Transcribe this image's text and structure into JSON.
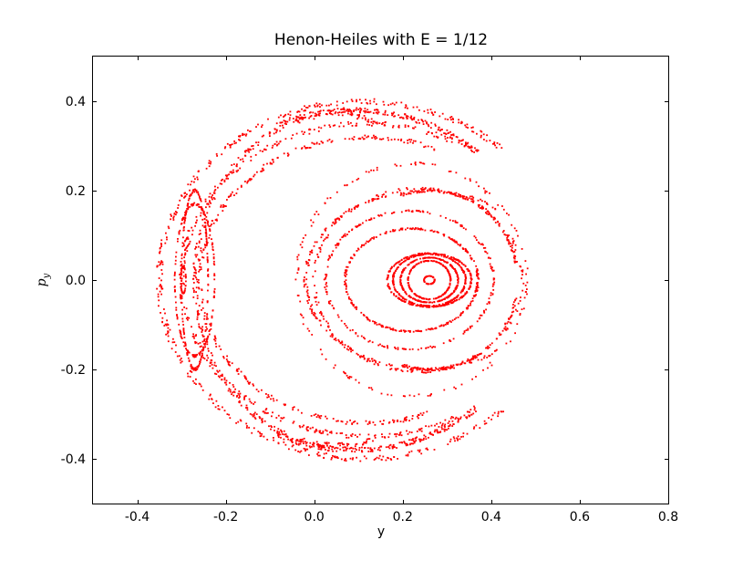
{
  "chart_data": {
    "type": "scatter",
    "title": "Henon-Heiles with E = 1/12",
    "xlabel": "y",
    "ylabel": "p",
    "ylabel_subscript": "y",
    "xlim": [
      -0.5,
      0.8
    ],
    "ylim": [
      -0.5,
      0.5
    ],
    "xticks": [
      -0.4,
      -0.2,
      0.0,
      0.2,
      0.4,
      0.6,
      0.8
    ],
    "xtick_labels": [
      "-0.4",
      "-0.2",
      "0.0",
      "0.2",
      "0.4",
      "0.6",
      "0.8"
    ],
    "yticks": [
      -0.4,
      -0.2,
      0.0,
      0.2,
      0.4
    ],
    "ytick_labels": [
      "-0.4",
      "-0.2",
      "0.0",
      "0.2",
      "0.4"
    ],
    "grid": false,
    "legend": "none",
    "marker_color": "#ff0000",
    "series": [
      {
        "kind": "ellipse",
        "center": [
          0.26,
          0.0
        ],
        "radius": [
          0.012,
          0.009
        ],
        "points": 60,
        "seed": 1
      },
      {
        "kind": "ellipse",
        "center": [
          0.26,
          0.0
        ],
        "radius": [
          0.048,
          0.043
        ],
        "points": 200,
        "seed": 2
      },
      {
        "kind": "ellipse",
        "center": [
          0.26,
          0.0
        ],
        "radius": [
          0.065,
          0.05
        ],
        "points": 240,
        "seed": 3
      },
      {
        "kind": "ellipse",
        "center": [
          0.26,
          0.0
        ],
        "radius": [
          0.082,
          0.058
        ],
        "points": 260,
        "seed": 4
      },
      {
        "kind": "ellipse",
        "center": [
          0.26,
          0.0
        ],
        "radius": [
          0.095,
          0.06
        ],
        "points": 240,
        "seed": 5
      },
      {
        "kind": "ellipse",
        "center": [
          0.22,
          0.0
        ],
        "radius": [
          0.15,
          0.115
        ],
        "points": 300,
        "seed": 6
      },
      {
        "kind": "ellipse",
        "center": [
          0.215,
          0.0
        ],
        "radius": [
          0.19,
          0.155
        ],
        "points": 220,
        "seed": 7
      },
      {
        "kind": "ellipse",
        "center": [
          0.235,
          0.0
        ],
        "radius": [
          0.235,
          0.205
        ],
        "points": 180,
        "seed": 8
      },
      {
        "kind": "ellipse",
        "center": [
          0.22,
          0.0
        ],
        "radius": [
          0.26,
          0.26
        ],
        "points": 140,
        "seed": 9
      },
      {
        "kind": "ellipse",
        "center": [
          -0.296,
          0.0
        ],
        "radius": [
          0.006,
          0.03
        ],
        "points": 50,
        "seed": 10
      },
      {
        "kind": "ellipse",
        "center": [
          -0.27,
          0.0
        ],
        "radius": [
          0.03,
          0.2
        ],
        "points": 200,
        "seed": 11
      },
      {
        "kind": "ellipse",
        "center": [
          -0.27,
          0.0
        ],
        "radius": [
          0.045,
          0.17
        ],
        "points": 180,
        "seed": 12
      },
      {
        "kind": "crescent",
        "center": [
          0.09,
          0.0
        ],
        "radius": [
          0.42,
          0.38
        ],
        "theta": [
          0.85,
          2.0
        ],
        "points": 220,
        "seed": 13
      },
      {
        "kind": "crescent",
        "center": [
          0.09,
          0.0
        ],
        "radius": [
          0.42,
          0.38
        ],
        "theta": [
          4.28,
          5.43
        ],
        "points": 220,
        "seed": 14
      },
      {
        "kind": "crescent",
        "center": [
          0.11,
          0.0
        ],
        "radius": [
          0.46,
          0.4
        ],
        "theta": [
          0.8,
          5.48
        ],
        "points": 420,
        "seed": 15
      },
      {
        "kind": "crescent",
        "center": [
          0.12,
          0.0
        ],
        "radius": [
          0.42,
          0.35
        ],
        "theta": [
          1.05,
          5.23
        ],
        "points": 360,
        "seed": 16
      },
      {
        "kind": "crescent",
        "center": [
          0.12,
          0.0
        ],
        "radius": [
          0.38,
          0.32
        ],
        "theta": [
          1.15,
          5.13
        ],
        "points": 300,
        "seed": 17
      },
      {
        "kind": "crescent",
        "center": [
          0.05,
          0.0
        ],
        "radius": [
          0.32,
          0.37
        ],
        "theta": [
          1.25,
          5.03
        ],
        "points": 300,
        "seed": 18
      },
      {
        "kind": "crescent",
        "center": [
          0.25,
          0.0
        ],
        "radius": [
          0.27,
          0.2
        ],
        "theta": [
          0.9,
          5.38
        ],
        "points": 220,
        "seed": 19
      },
      {
        "kind": "crescent",
        "center": [
          0.26,
          0.0
        ],
        "radius": [
          0.2,
          0.2
        ],
        "theta": [
          0.2,
          1.9
        ],
        "points": 120,
        "seed": 20
      },
      {
        "kind": "crescent",
        "center": [
          0.26,
          0.0
        ],
        "radius": [
          0.2,
          0.2
        ],
        "theta": [
          4.38,
          6.08
        ],
        "points": 120,
        "seed": 21
      }
    ]
  }
}
